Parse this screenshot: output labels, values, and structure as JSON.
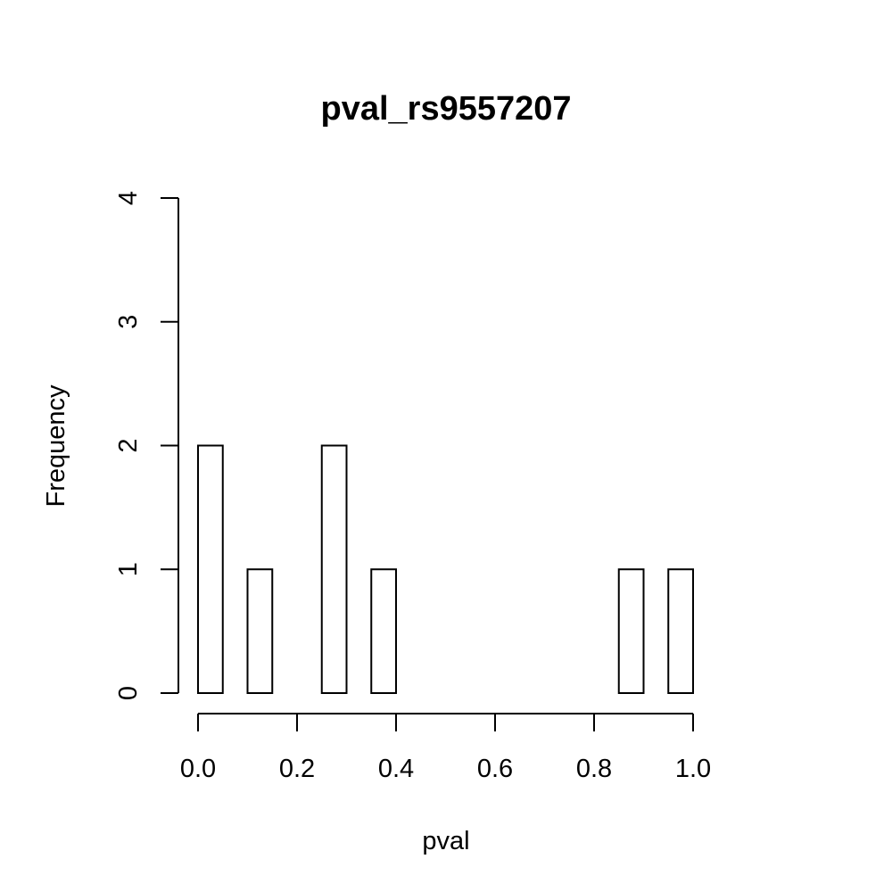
{
  "chart_data": {
    "type": "bar",
    "title": "pval_rs9557207",
    "xlabel": "pval",
    "ylabel": "Frequency",
    "bin_edges": [
      0.0,
      0.05,
      0.1,
      0.15,
      0.2,
      0.25,
      0.3,
      0.35,
      0.4,
      0.45,
      0.5,
      0.55,
      0.6,
      0.65,
      0.7,
      0.75,
      0.8,
      0.85,
      0.9,
      0.95,
      1.0
    ],
    "values": [
      2,
      0,
      1,
      0,
      0,
      2,
      0,
      1,
      0,
      0,
      0,
      0,
      0,
      0,
      0,
      0,
      0,
      1,
      0,
      1
    ],
    "xlim": [
      0,
      1
    ],
    "ylim": [
      0,
      4
    ],
    "xticks": [
      "0.0",
      "0.2",
      "0.4",
      "0.6",
      "0.8",
      "1.0"
    ],
    "yticks": [
      "0",
      "1",
      "2",
      "3",
      "4"
    ],
    "grid": false,
    "legend": "none"
  }
}
